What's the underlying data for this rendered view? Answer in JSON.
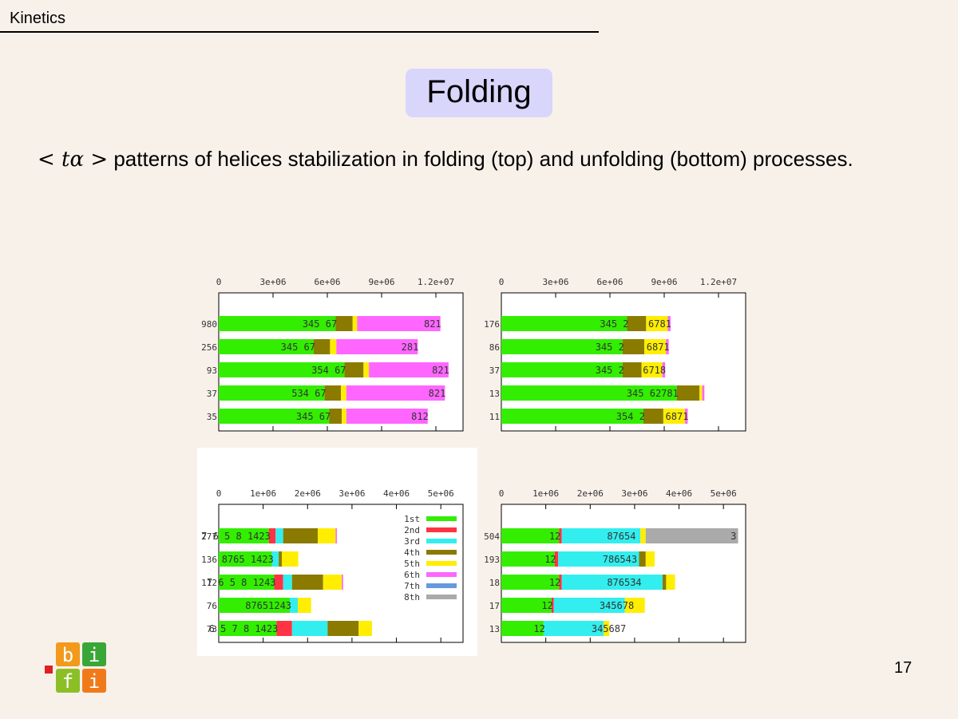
{
  "header": {
    "section": "Kinetics"
  },
  "slide": {
    "title": "Folding",
    "description_math": "< tα >",
    "description_text": " patterns of helices stabilization in folding (top) and unfolding (bottom) processes.",
    "page_number": "17"
  },
  "logo": {
    "letters": [
      "b",
      "i",
      "f",
      "i"
    ]
  },
  "colors": {
    "1st": "#33ee00",
    "2nd": "#ff3344",
    "3rd": "#33eeee",
    "4th": "#8b7a00",
    "5th": "#ffee00",
    "6th": "#ff66ff",
    "7th": "#6699dd",
    "8th": "#aaaaaa",
    "background": "#f8f1ea",
    "title_box": "#d8d6fb"
  },
  "chart_data": [
    {
      "type": "bar",
      "orientation": "horizontal",
      "stacked": true,
      "xlim": [
        0,
        13500000
      ],
      "xticks": [
        {
          "value": 0,
          "label": "0"
        },
        {
          "value": 3000000,
          "label": "3e+06"
        },
        {
          "value": 6000000,
          "label": "6e+06"
        },
        {
          "value": 9000000,
          "label": "9e+06"
        },
        {
          "value": 12000000,
          "label": "1.2e+07"
        }
      ],
      "rows": [
        {
          "label": "980",
          "segments": [
            {
              "c": "1st",
              "v": 6450000
            },
            {
              "c": "4th",
              "v": 950000
            },
            {
              "c": "5th",
              "v": 250000
            },
            {
              "c": "6th",
              "v": 4600000
            }
          ],
          "annotation": "345 67",
          "annotation2": "821"
        },
        {
          "label": "256",
          "segments": [
            {
              "c": "1st",
              "v": 5250000
            },
            {
              "c": "4th",
              "v": 900000
            },
            {
              "c": "5th",
              "v": 350000
            },
            {
              "c": "6th",
              "v": 4500000
            }
          ],
          "annotation": "345 67",
          "annotation2": "281"
        },
        {
          "label": "93",
          "segments": [
            {
              "c": "1st",
              "v": 6950000
            },
            {
              "c": "4th",
              "v": 1050000
            },
            {
              "c": "5th",
              "v": 300000
            },
            {
              "c": "6th",
              "v": 4400000
            }
          ],
          "annotation": "354 67",
          "annotation2": "821"
        },
        {
          "label": "37",
          "segments": [
            {
              "c": "1st",
              "v": 5850000
            },
            {
              "c": "4th",
              "v": 900000
            },
            {
              "c": "5th",
              "v": 300000
            },
            {
              "c": "6th",
              "v": 5450000
            }
          ],
          "annotation": "534 67",
          "annotation2": "821"
        },
        {
          "label": "35",
          "segments": [
            {
              "c": "1st",
              "v": 6100000
            },
            {
              "c": "4th",
              "v": 700000
            },
            {
              "c": "5th",
              "v": 250000
            },
            {
              "c": "6th",
              "v": 4500000
            }
          ],
          "annotation": "345 67",
          "annotation2": "812"
        }
      ]
    },
    {
      "type": "bar",
      "orientation": "horizontal",
      "stacked": true,
      "xlim": [
        0,
        13500000
      ],
      "xticks": [
        {
          "value": 0,
          "label": "0"
        },
        {
          "value": 3000000,
          "label": "3e+06"
        },
        {
          "value": 6000000,
          "label": "6e+06"
        },
        {
          "value": 9000000,
          "label": "9e+06"
        },
        {
          "value": 12000000,
          "label": "1.2e+07"
        }
      ],
      "rows": [
        {
          "label": "176",
          "segments": [
            {
              "c": "1st",
              "v": 6950000
            },
            {
              "c": "4th",
              "v": 1050000
            },
            {
              "c": "5th",
              "v": 1200000
            },
            {
              "c": "6th",
              "v": 150000
            }
          ],
          "annotation": "345 2",
          "annotation2": "6781"
        },
        {
          "label": "86",
          "segments": [
            {
              "c": "1st",
              "v": 6700000
            },
            {
              "c": "4th",
              "v": 1200000
            },
            {
              "c": "5th",
              "v": 1200000
            },
            {
              "c": "6th",
              "v": 150000
            }
          ],
          "annotation": "345 2",
          "annotation2": "6871"
        },
        {
          "label": "37",
          "segments": [
            {
              "c": "1st",
              "v": 6700000
            },
            {
              "c": "4th",
              "v": 1050000
            },
            {
              "c": "5th",
              "v": 1150000
            },
            {
              "c": "6th",
              "v": 150000
            }
          ],
          "annotation": "345 2",
          "annotation2": "6718"
        },
        {
          "label": "13",
          "segments": [
            {
              "c": "1st",
              "v": 9700000
            },
            {
              "c": "4th",
              "v": 1250000
            },
            {
              "c": "5th",
              "v": 150000
            },
            {
              "c": "6th",
              "v": 120000
            }
          ],
          "annotation": "345 62781",
          "annotation2": ""
        },
        {
          "label": "11",
          "segments": [
            {
              "c": "1st",
              "v": 7850000
            },
            {
              "c": "4th",
              "v": 1100000
            },
            {
              "c": "5th",
              "v": 1200000
            },
            {
              "c": "6th",
              "v": 150000
            }
          ],
          "annotation": "354 2",
          "annotation2": "6871"
        }
      ]
    },
    {
      "type": "bar",
      "orientation": "horizontal",
      "stacked": true,
      "xlim": [
        0,
        5500000
      ],
      "xticks": [
        {
          "value": 0,
          "label": "0"
        },
        {
          "value": 1000000,
          "label": "1e+06"
        },
        {
          "value": 2000000,
          "label": "2e+06"
        },
        {
          "value": 3000000,
          "label": "3e+06"
        },
        {
          "value": 4000000,
          "label": "4e+06"
        },
        {
          "value": 5000000,
          "label": "5e+06"
        }
      ],
      "legend": [
        {
          "label": "1st",
          "c": "1st"
        },
        {
          "label": "2nd",
          "c": "2nd"
        },
        {
          "label": "3rd",
          "c": "3rd"
        },
        {
          "label": "4th",
          "c": "4th"
        },
        {
          "label": "5th",
          "c": "5th"
        },
        {
          "label": "6th",
          "c": "6th"
        },
        {
          "label": "7th",
          "c": "7th"
        },
        {
          "label": "8th",
          "c": "8th"
        }
      ],
      "rows": [
        {
          "label": "277",
          "segments": [
            {
              "c": "1st",
              "v": 1130000
            },
            {
              "c": "2nd",
              "v": 150000
            },
            {
              "c": "3rd",
              "v": 170000
            },
            {
              "c": "4th",
              "v": 780000
            },
            {
              "c": "5th",
              "v": 400000
            },
            {
              "c": "6th",
              "v": 30000
            }
          ],
          "annotation": "7 6 5     8  1423",
          "annotation2": ""
        },
        {
          "label": "136",
          "segments": [
            {
              "c": "1st",
              "v": 1200000
            },
            {
              "c": "3rd",
              "v": 150000
            },
            {
              "c": "4th",
              "v": 70000
            },
            {
              "c": "5th",
              "v": 370000
            }
          ],
          "annotation": "8765 1423",
          "annotation2": ""
        },
        {
          "label": "112",
          "segments": [
            {
              "c": "1st",
              "v": 1250000
            },
            {
              "c": "2nd",
              "v": 200000
            },
            {
              "c": "3rd",
              "v": 200000
            },
            {
              "c": "4th",
              "v": 700000
            },
            {
              "c": "5th",
              "v": 420000
            },
            {
              "c": "6th",
              "v": 30000
            }
          ],
          "annotation": "7 6 5     8  1243",
          "annotation2": ""
        },
        {
          "label": "76",
          "segments": [
            {
              "c": "1st",
              "v": 1600000
            },
            {
              "c": "3rd",
              "v": 180000
            },
            {
              "c": "5th",
              "v": 300000
            }
          ],
          "annotation": "87651243",
          "annotation2": ""
        },
        {
          "label": "73",
          "segments": [
            {
              "c": "1st",
              "v": 1300000
            },
            {
              "c": "2nd",
              "v": 350000
            },
            {
              "c": "3rd",
              "v": 800000
            },
            {
              "c": "4th",
              "v": 700000
            },
            {
              "c": "5th",
              "v": 300000
            }
          ],
          "annotation": "6  5        7      8  1423",
          "annotation2": ""
        }
      ]
    },
    {
      "type": "bar",
      "orientation": "horizontal",
      "stacked": true,
      "xlim": [
        0,
        5500000
      ],
      "xticks": [
        {
          "value": 0,
          "label": "0"
        },
        {
          "value": 1000000,
          "label": "1e+06"
        },
        {
          "value": 2000000,
          "label": "2e+06"
        },
        {
          "value": 3000000,
          "label": "3e+06"
        },
        {
          "value": 4000000,
          "label": "4e+06"
        },
        {
          "value": 5000000,
          "label": "5e+06"
        }
      ],
      "rows": [
        {
          "label": "504",
          "segments": [
            {
              "c": "1st",
              "v": 1300000
            },
            {
              "c": "2nd",
              "v": 60000
            },
            {
              "c": "3rd",
              "v": 1770000
            },
            {
              "c": "5th",
              "v": 120000
            },
            {
              "c": "8th",
              "v": 2080000
            }
          ],
          "annotation": "12",
          "annotation2": "87654",
          "annotation3": "3"
        },
        {
          "label": "193",
          "segments": [
            {
              "c": "1st",
              "v": 1200000
            },
            {
              "c": "2nd",
              "v": 80000
            },
            {
              "c": "3rd",
              "v": 1820000
            },
            {
              "c": "4th",
              "v": 150000
            },
            {
              "c": "5th",
              "v": 200000
            }
          ],
          "annotation": "12",
          "annotation2": "786543"
        },
        {
          "label": "18",
          "segments": [
            {
              "c": "1st",
              "v": 1300000
            },
            {
              "c": "2nd",
              "v": 60000
            },
            {
              "c": "3rd",
              "v": 2270000
            },
            {
              "c": "4th",
              "v": 80000
            },
            {
              "c": "5th",
              "v": 200000
            }
          ],
          "annotation": "12",
          "annotation2": "876534"
        },
        {
          "label": "17",
          "segments": [
            {
              "c": "1st",
              "v": 1130000
            },
            {
              "c": "2nd",
              "v": 50000
            },
            {
              "c": "3rd",
              "v": 1600000
            },
            {
              "c": "5th",
              "v": 450000
            }
          ],
          "annotation": "12",
          "annotation2": "345678"
        },
        {
          "label": "13",
          "segments": [
            {
              "c": "1st",
              "v": 950000
            },
            {
              "c": "3rd",
              "v": 1350000
            },
            {
              "c": "5th",
              "v": 130000
            }
          ],
          "annotation": "12",
          "annotation2": "345687"
        }
      ]
    }
  ]
}
